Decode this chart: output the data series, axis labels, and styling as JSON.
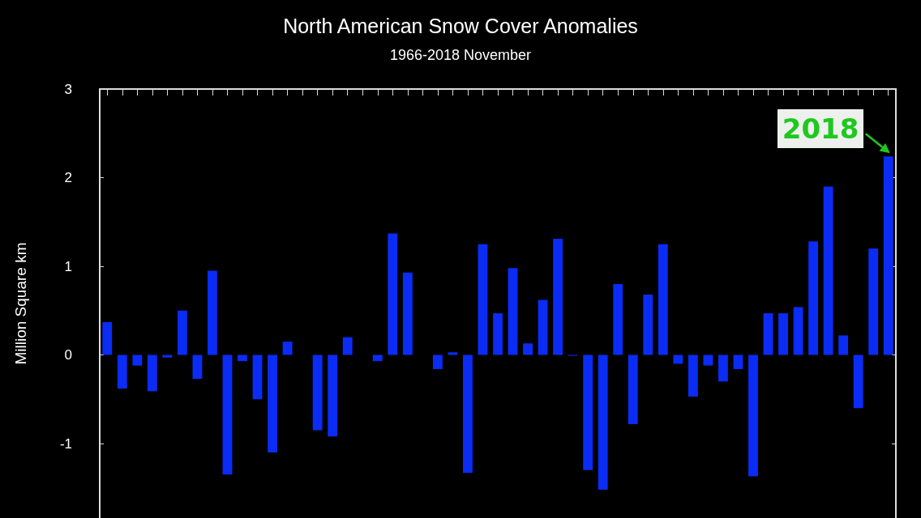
{
  "chart_data": {
    "type": "bar",
    "title": "North American Snow Cover Anomalies",
    "subtitle": "1966-2018 November",
    "ylabel": "Million Square km",
    "categories": [
      null,
      null,
      null,
      null,
      null,
      null,
      null,
      null,
      null,
      null,
      null,
      null,
      null,
      null,
      null,
      null,
      null,
      null,
      null,
      null,
      null,
      null,
      null,
      null,
      null,
      null,
      null,
      null,
      null,
      null,
      null,
      null,
      null,
      null,
      null,
      null,
      null,
      null,
      null,
      null,
      null,
      null,
      null,
      null,
      null,
      null,
      null,
      null,
      null,
      null,
      null,
      null,
      null
    ],
    "values": [
      0.37,
      -0.38,
      -0.12,
      -0.41,
      -0.03,
      0.5,
      -0.27,
      0.95,
      -1.35,
      -0.07,
      -0.5,
      -1.1,
      0.15,
      null,
      -0.85,
      -0.92,
      0.2,
      0,
      -0.07,
      1.37,
      0.93,
      null,
      -0.16,
      0.03,
      -1.33,
      1.25,
      0.47,
      0.98,
      0.13,
      0.62,
      1.31,
      -0.01,
      -1.3,
      -1.52,
      0.8,
      -0.78,
      0.68,
      1.25,
      -0.1,
      -0.47,
      -0.12,
      -0.3,
      -0.16,
      -1.37,
      0.47,
      0.47,
      0.54,
      1.28,
      1.9,
      0.22,
      -0.6,
      1.2,
      2.24
    ],
    "color": "#0a2cf5",
    "ylim": [
      -1.84,
      3
    ],
    "yticks": [
      -1,
      0,
      1,
      2,
      3
    ],
    "grid": false,
    "annotations": [
      "2018"
    ]
  }
}
